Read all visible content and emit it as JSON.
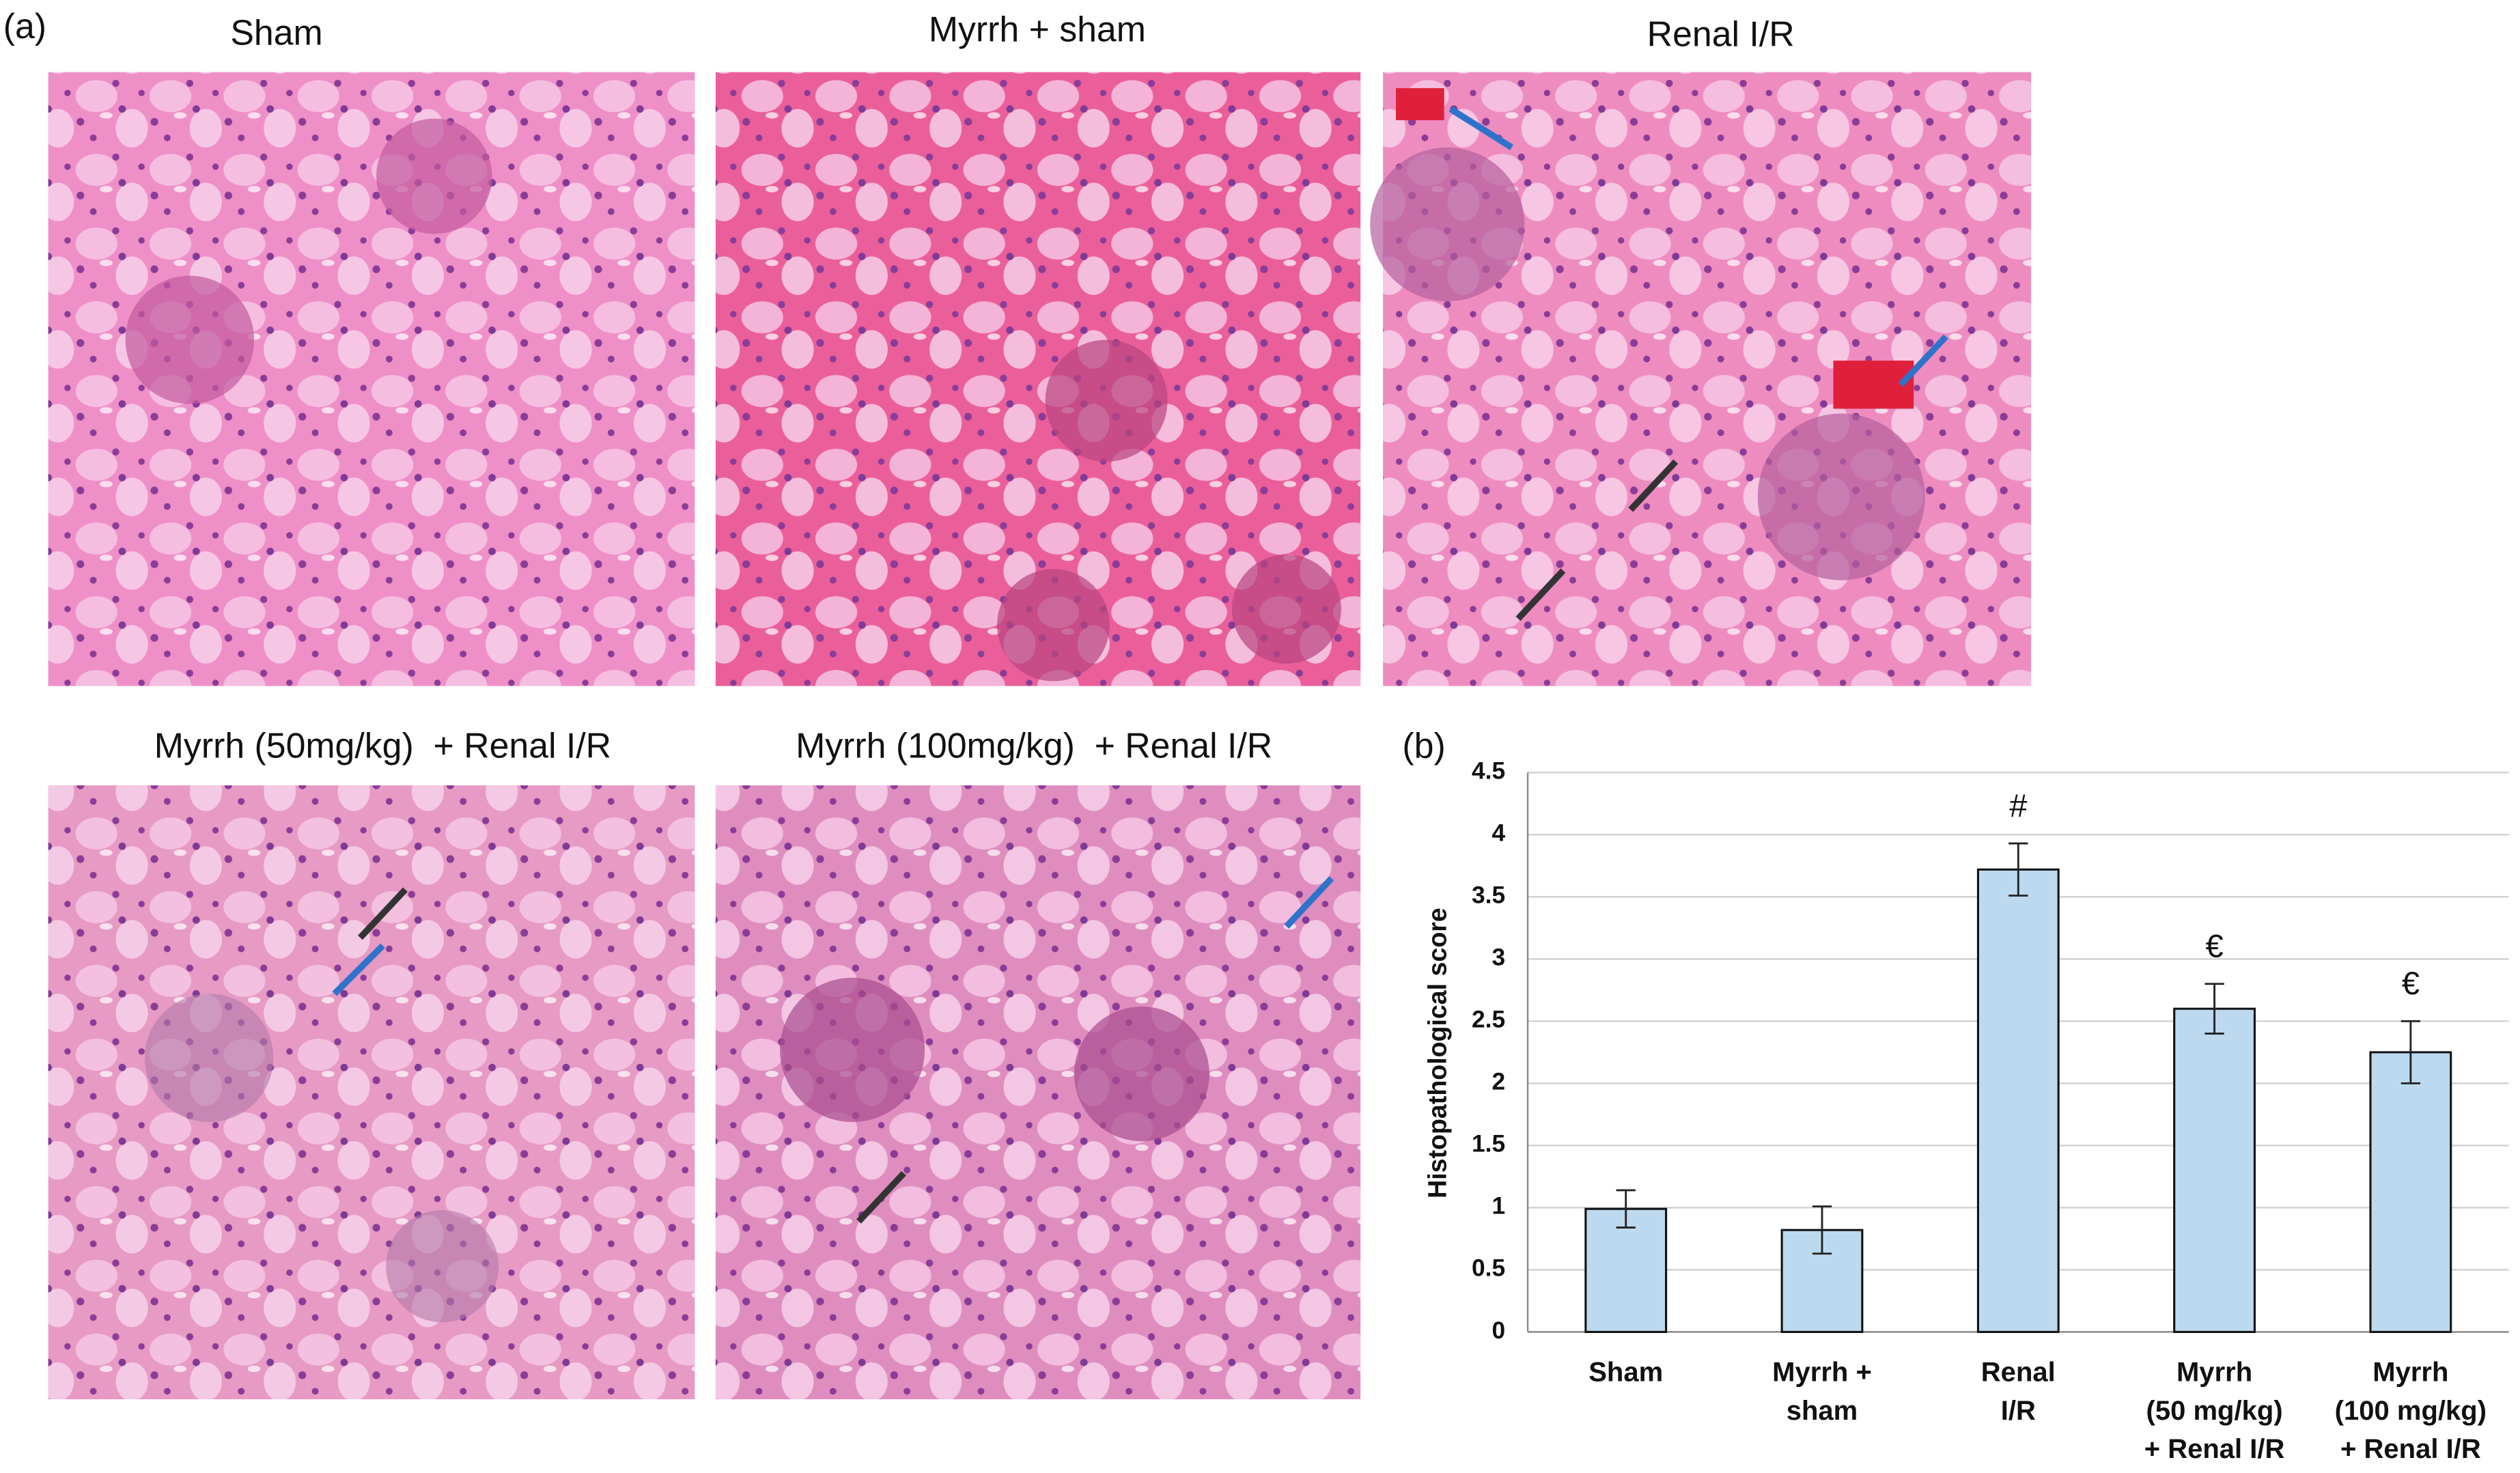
{
  "figure": {
    "panel_a_label": "(a)",
    "panel_b_label": "(b)",
    "images": [
      "Sham",
      "Myrrh + sham",
      "Renal I/R",
      "Myrrh (50mg/kg)  + Renal I/R",
      "Myrrh (100mg/kg)  + Renal I/R"
    ]
  },
  "chart_data": {
    "type": "bar",
    "y_label": "Histopathological score",
    "categories": [
      "Sham",
      "Myrrh +\nsham",
      "Renal\nI/R",
      "Myrrh\n(50 mg/kg)\n+ Renal I/R",
      "Myrrh\n(100 mg/kg)\n+ Renal I/R"
    ],
    "values": [
      0.99,
      0.82,
      3.72,
      2.6,
      2.25
    ],
    "errors": [
      0.15,
      0.19,
      0.21,
      0.2,
      0.25
    ],
    "annotations": [
      null,
      null,
      "#",
      "€",
      "€"
    ],
    "color": "#bcd9ef",
    "ylim": [
      0,
      4.5
    ],
    "yticks": [
      0,
      0.5,
      1,
      1.5,
      2,
      2.5,
      3,
      3.5,
      4,
      4.5
    ],
    "grid": true
  }
}
